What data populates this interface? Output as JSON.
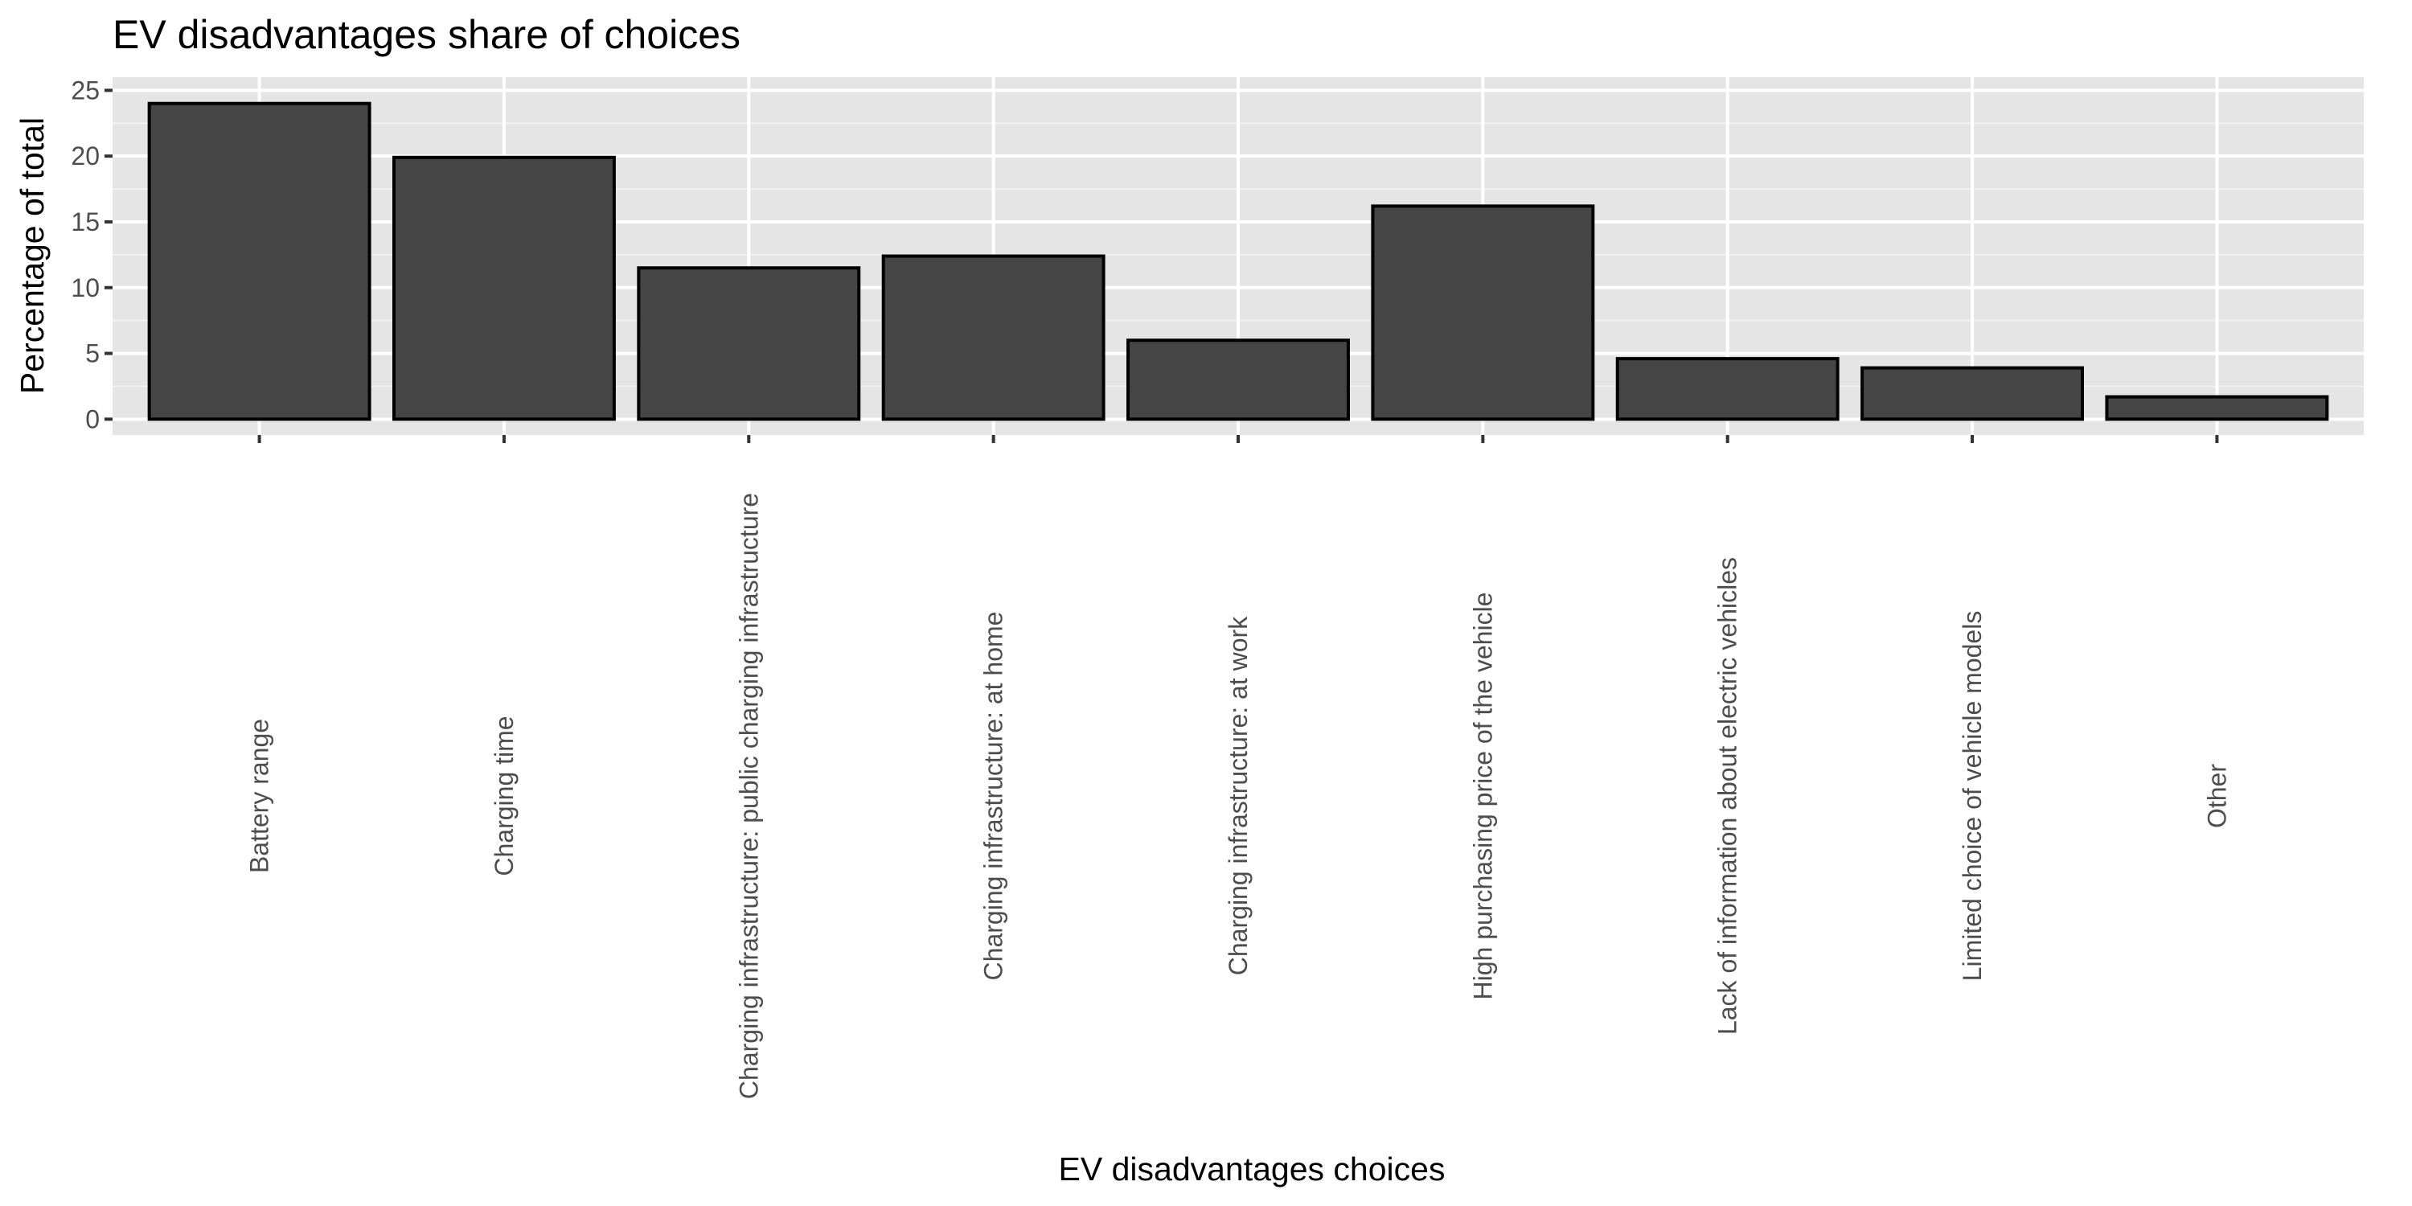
{
  "chart_data": {
    "type": "bar",
    "title": "EV disadvantages share of choices",
    "xlabel": "EV disadvantages choices",
    "ylabel": "Percentage of total",
    "categories": [
      "Battery range",
      "Charging time",
      "Charging infrastructure: public charging infrastructure",
      "Charging infrastructure: at home",
      "Charging infrastructure: at work",
      "High purchasing price of the vehicle",
      "Lack of information about electric vehicles",
      "Limited choice of vehicle models",
      "Other"
    ],
    "values": [
      24.0,
      19.9,
      11.5,
      12.4,
      6.0,
      16.2,
      4.6,
      3.9,
      1.7
    ],
    "ylim": [
      -1.2,
      26.0
    ],
    "yticks": [
      0,
      5,
      10,
      15,
      20,
      25
    ],
    "grid": true,
    "colors": {
      "bar_fill": "#454545",
      "bar_stroke": "#000000",
      "panel_bg": "#e5e5e5",
      "grid_major": "#ffffff",
      "grid_minor": "#f2f2f2",
      "tick_text": "#4d4d4d",
      "tick_mark": "#333333"
    }
  }
}
